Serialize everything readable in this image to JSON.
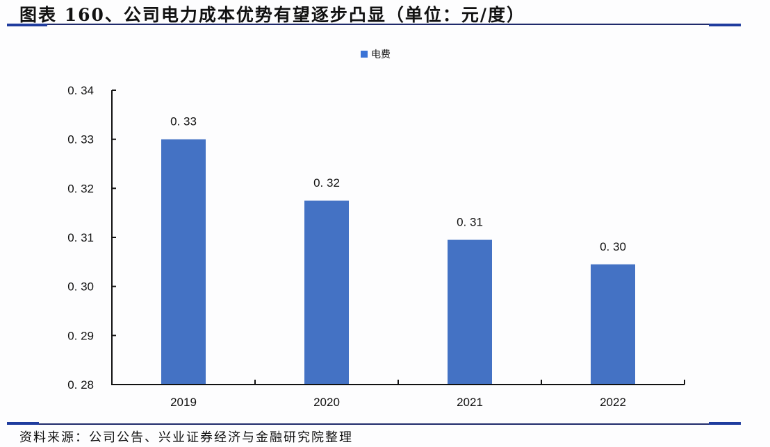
{
  "header": {
    "title": "图表 160、公司电力成本优势有望逐步凸显（单位：元/度）"
  },
  "legend": {
    "items": [
      {
        "label": "电费",
        "color": "#4472c4"
      }
    ]
  },
  "footer": {
    "source": "资料来源：公司公告、兴业证券经济与金融研究院整理"
  },
  "colors": {
    "bar": "#4472c4",
    "rule": "#1f2a6b",
    "rule_accent": "#1f3c9e"
  },
  "chart_data": {
    "type": "bar",
    "title": "公司电力成本优势有望逐步凸显（单位：元/度）",
    "xlabel": "",
    "ylabel": "",
    "categories": [
      "2019",
      "2020",
      "2021",
      "2022"
    ],
    "series": [
      {
        "name": "电费",
        "values": [
          0.33,
          0.3175,
          0.3095,
          0.3045
        ]
      }
    ],
    "data_labels": [
      "0.33",
      "0.32",
      "0.31",
      "0.30"
    ],
    "y_ticks": [
      "0.28",
      "0.29",
      "0.30",
      "0.31",
      "0.32",
      "0.33",
      "0.34"
    ],
    "ylim": [
      0.28,
      0.34
    ],
    "grid": false,
    "legend_position": "top"
  }
}
